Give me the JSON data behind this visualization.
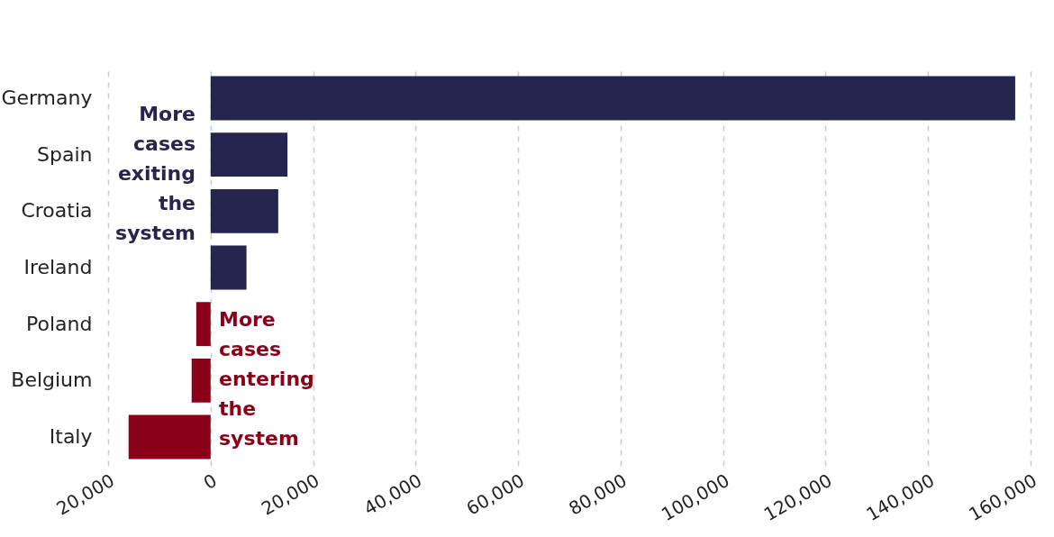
{
  "chart_data": {
    "type": "bar",
    "orientation": "horizontal",
    "categories": [
      "Germany",
      "Spain",
      "Croatia",
      "Ireland",
      "Poland",
      "Belgium",
      "Italy"
    ],
    "values": [
      157000,
      15000,
      13200,
      7000,
      -2800,
      -3700,
      -16000
    ],
    "colors": [
      "#25254d",
      "#25254d",
      "#25254d",
      "#25254d",
      "#8a0019",
      "#8a0019",
      "#8a0019"
    ],
    "xlim": [
      -20000,
      160000
    ],
    "xticks": [
      {
        "value": -20000,
        "label": "20,000"
      },
      0,
      {
        "value": 20000,
        "label": "20,000"
      },
      {
        "value": 40000,
        "label": "40,000"
      },
      {
        "value": 60000,
        "label": "60,000"
      },
      {
        "value": 80000,
        "label": "80,000"
      },
      {
        "value": 100000,
        "label": "100,000"
      },
      {
        "value": 120000,
        "label": "120,000"
      },
      {
        "value": 140000,
        "label": "140,000"
      },
      {
        "value": 160000,
        "label": "160,000"
      }
    ],
    "grid": "x",
    "annotations": [
      "More cases exiting the system",
      "More cases entering the system"
    ]
  }
}
